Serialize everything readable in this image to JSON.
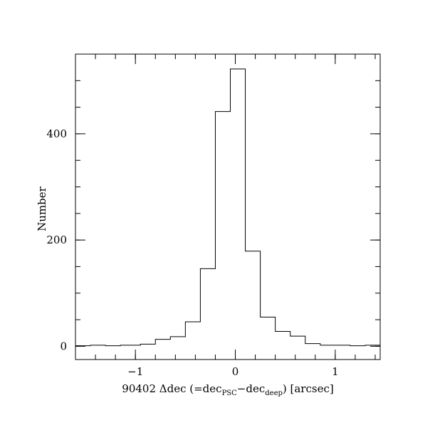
{
  "chart_data": {
    "type": "histogram",
    "title": "",
    "xlabel": {
      "prefix": "90402 Δdec (=dec",
      "sub1": "PSC",
      "mid": "−dec",
      "sub2": "deep",
      "suffix": ") [arcsec]"
    },
    "ylabel": "Number",
    "xlim": [
      -1.6,
      1.45
    ],
    "ylim": [
      -25,
      550
    ],
    "x_ticks": [
      {
        "value": -1,
        "label": "−1"
      },
      {
        "value": 0,
        "label": "0"
      },
      {
        "value": 1,
        "label": "1"
      }
    ],
    "x_minor_step": 0.2,
    "y_ticks": [
      {
        "value": 0,
        "label": "0"
      },
      {
        "value": 200,
        "label": "200"
      },
      {
        "value": 400,
        "label": "400"
      }
    ],
    "y_minor_step": 50,
    "bin_edges": [
      -1.6,
      -1.45,
      -1.3,
      -1.15,
      -1.0,
      -0.95,
      -0.8,
      -0.65,
      -0.5,
      -0.35,
      -0.2,
      -0.05,
      0.1,
      0.25,
      0.4,
      0.55,
      0.7,
      0.85,
      1.0,
      1.15,
      1.3,
      1.45
    ],
    "counts": [
      1,
      2,
      1,
      2,
      2,
      4,
      13,
      18,
      46,
      146,
      442,
      522,
      179,
      55,
      28,
      19,
      5,
      2,
      2,
      1,
      2
    ],
    "grid": false
  }
}
